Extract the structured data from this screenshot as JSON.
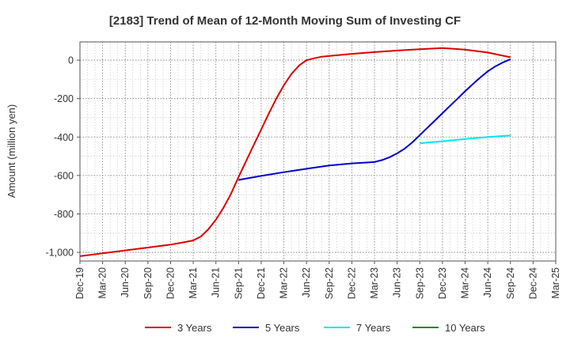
{
  "chart_data": {
    "type": "line",
    "title": "[2183]  Trend of Mean of 12-Month Moving Sum of Investing CF",
    "ylabel": "Amount (million yen)",
    "xlabel": "",
    "x_ticks": [
      "Dec-19",
      "Mar-20",
      "Jun-20",
      "Sep-20",
      "Dec-20",
      "Mar-21",
      "Jun-21",
      "Sep-21",
      "Dec-21",
      "Mar-22",
      "Jun-22",
      "Sep-22",
      "Dec-22",
      "Mar-23",
      "Jun-23",
      "Sep-23",
      "Dec-23",
      "Mar-24",
      "Jun-24",
      "Sep-24",
      "Dec-24",
      "Mar-25"
    ],
    "y_ticks": [
      0,
      -200,
      -400,
      -600,
      -800,
      -1000
    ],
    "y_tick_labels": [
      "0",
      "-200",
      "-400",
      "-600",
      "-800",
      "-1,000"
    ],
    "ylim": [
      -1045,
      95
    ],
    "xlim": [
      "Dec-19",
      "Mar-25"
    ],
    "grid": true,
    "legend_position": "bottom",
    "series": [
      {
        "name": "3 Years",
        "color": "#dd0000",
        "points": [
          [
            "Dec-19",
            -1020
          ],
          [
            "Mar-20",
            -1005
          ],
          [
            "Jun-20",
            -990
          ],
          [
            "Sep-20",
            -975
          ],
          [
            "Dec-20",
            -960
          ],
          [
            "Jan-21",
            -953
          ],
          [
            "Feb-21",
            -946
          ],
          [
            "Mar-21",
            -938
          ],
          [
            "Apr-21",
            -918
          ],
          [
            "May-21",
            -880
          ],
          [
            "Jun-21",
            -830
          ],
          [
            "Jul-21",
            -768
          ],
          [
            "Aug-21",
            -695
          ],
          [
            "Sep-21",
            -608
          ],
          [
            "Oct-21",
            -525
          ],
          [
            "Nov-21",
            -442
          ],
          [
            "Dec-21",
            -360
          ],
          [
            "Jan-22",
            -278
          ],
          [
            "Feb-22",
            -200
          ],
          [
            "Mar-22",
            -130
          ],
          [
            "Apr-22",
            -72
          ],
          [
            "May-22",
            -28
          ],
          [
            "Jun-22",
            0
          ],
          [
            "Jul-22",
            10
          ],
          [
            "Aug-22",
            18
          ],
          [
            "Sep-22",
            22
          ],
          [
            "Dec-22",
            33
          ],
          [
            "Mar-23",
            42
          ],
          [
            "Jun-23",
            50
          ],
          [
            "Sep-23",
            57
          ],
          [
            "Dec-23",
            63
          ],
          [
            "Mar-24",
            55
          ],
          [
            "Jun-24",
            40
          ],
          [
            "Sep-24",
            15
          ]
        ]
      },
      {
        "name": "5 Years",
        "color": "#0000cc",
        "points": [
          [
            "Sep-21",
            -623
          ],
          [
            "Dec-21",
            -602
          ],
          [
            "Mar-22",
            -583
          ],
          [
            "Jun-22",
            -565
          ],
          [
            "Sep-22",
            -548
          ],
          [
            "Dec-22",
            -537
          ],
          [
            "Mar-23",
            -530
          ],
          [
            "Apr-23",
            -520
          ],
          [
            "May-23",
            -505
          ],
          [
            "Jun-23",
            -485
          ],
          [
            "Jul-23",
            -460
          ],
          [
            "Aug-23",
            -428
          ],
          [
            "Sep-23",
            -390
          ],
          [
            "Oct-23",
            -352
          ],
          [
            "Nov-23",
            -314
          ],
          [
            "Dec-23",
            -276
          ],
          [
            "Jan-24",
            -238
          ],
          [
            "Feb-24",
            -200
          ],
          [
            "Mar-24",
            -162
          ],
          [
            "Apr-24",
            -125
          ],
          [
            "May-24",
            -90
          ],
          [
            "Jun-24",
            -58
          ],
          [
            "Jul-24",
            -32
          ],
          [
            "Aug-24",
            -12
          ],
          [
            "Sep-24",
            5
          ]
        ]
      },
      {
        "name": "7 Years",
        "color": "#00e5ee",
        "points": [
          [
            "Sep-23",
            -432
          ],
          [
            "Dec-23",
            -422
          ],
          [
            "Mar-24",
            -410
          ],
          [
            "Jun-24",
            -400
          ],
          [
            "Sep-24",
            -392
          ]
        ]
      },
      {
        "name": "10 Years",
        "color": "#228b22",
        "points": []
      }
    ]
  }
}
